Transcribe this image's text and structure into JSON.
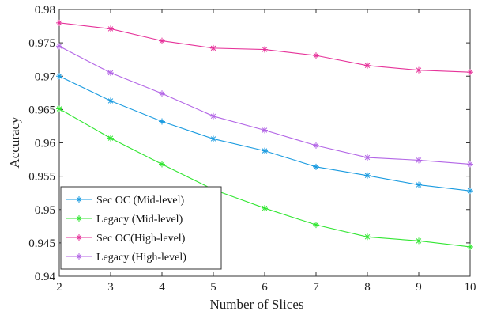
{
  "chart_data": {
    "type": "line",
    "title": "",
    "xlabel": "Number of Slices",
    "ylabel": "Accuracy",
    "x": [
      2,
      3,
      4,
      5,
      6,
      7,
      8,
      9,
      10
    ],
    "xlim": [
      2,
      10
    ],
    "ylim": [
      0.94,
      0.98
    ],
    "x_ticks": [
      "2",
      "3",
      "4",
      "5",
      "6",
      "7",
      "8",
      "9",
      "10"
    ],
    "y_ticks": [
      "0.94",
      "0.945",
      "0.95",
      "0.955",
      "0.96",
      "0.965",
      "0.97",
      "0.975",
      "0.98"
    ],
    "grid": false,
    "legend_position": "bottom-left",
    "marker": "asterisk",
    "series": [
      {
        "name": "Sec OC (Mid-level)",
        "color": "#1a9be0",
        "values": [
          0.97,
          0.9663,
          0.9632,
          0.9606,
          0.9588,
          0.9564,
          0.9551,
          0.9537,
          0.9528
        ]
      },
      {
        "name": "Legacy (Mid-level)",
        "color": "#33e633",
        "values": [
          0.9651,
          0.9607,
          0.9568,
          0.953,
          0.9502,
          0.9477,
          0.9459,
          0.9453,
          0.9444
        ]
      },
      {
        "name": "Sec OC(High-level)",
        "color": "#e6339a",
        "values": [
          0.978,
          0.9771,
          0.9753,
          0.9742,
          0.974,
          0.9731,
          0.9716,
          0.9709,
          0.9706
        ]
      },
      {
        "name": "Legacy (High-level)",
        "color": "#b366e6",
        "values": [
          0.9745,
          0.9705,
          0.9674,
          0.964,
          0.9619,
          0.9596,
          0.9578,
          0.9574,
          0.9568
        ]
      }
    ]
  }
}
